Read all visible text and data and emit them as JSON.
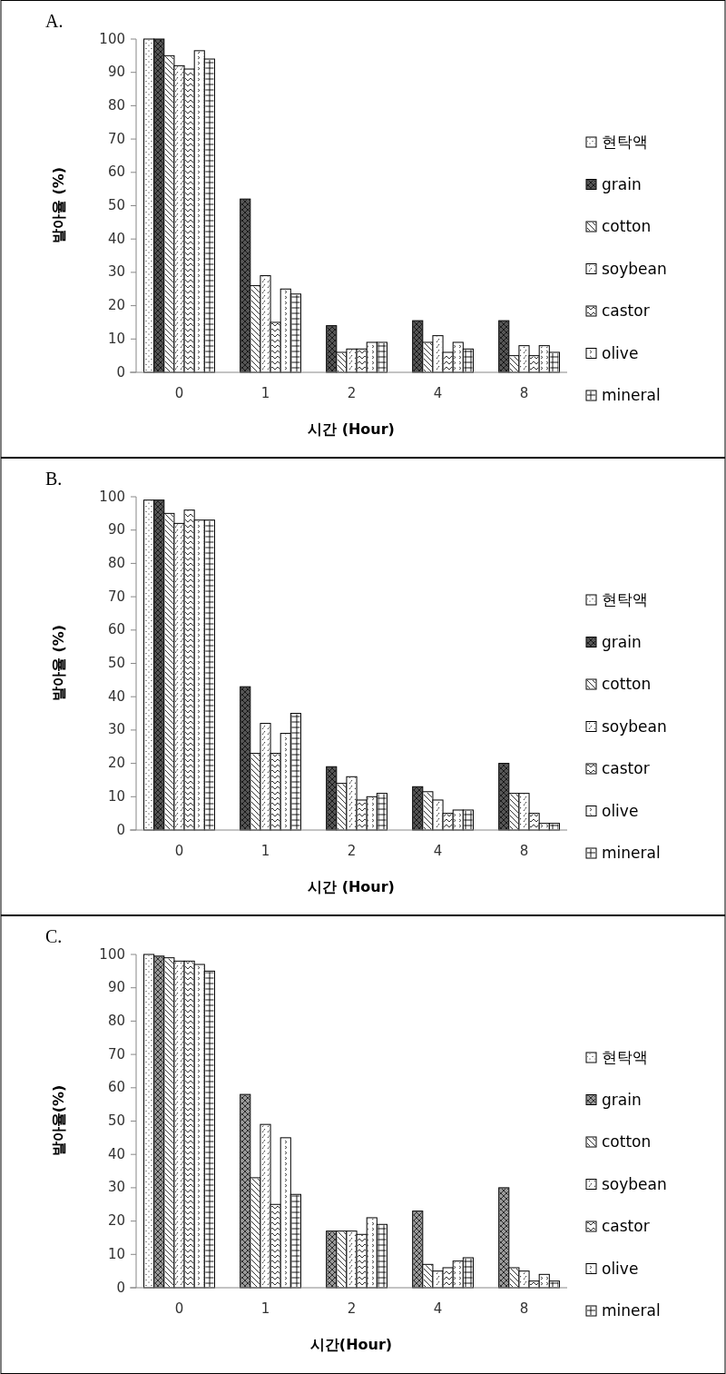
{
  "chart_data": [
    {
      "type": "bar",
      "title": "A.",
      "xlabel": "시간 (Hour)",
      "ylabel": "발아율 (%)",
      "categories": [
        "0",
        "1",
        "2",
        "4",
        "8"
      ],
      "ylim": [
        0,
        100
      ],
      "yticks": [
        0,
        10,
        20,
        30,
        40,
        50,
        60,
        70,
        80,
        90,
        100
      ],
      "grid": false,
      "legend": "right",
      "series": [
        {
          "name": "현탁액",
          "color": "#ffffff",
          "values": [
            100,
            null,
            null,
            null,
            null
          ]
        },
        {
          "name": "grain",
          "color": "#555555",
          "values": [
            100,
            52,
            14,
            15.5,
            15.5
          ]
        },
        {
          "name": "cotton",
          "color": "#ffffff",
          "values": [
            95,
            26,
            6,
            9,
            5
          ]
        },
        {
          "name": "soybean",
          "color": "#ffffff",
          "values": [
            92,
            29,
            7,
            11,
            8
          ]
        },
        {
          "name": "castor",
          "color": "#ffffff",
          "values": [
            91,
            15,
            7,
            6,
            5
          ]
        },
        {
          "name": "olive",
          "color": "#ffffff",
          "values": [
            96.5,
            25,
            9,
            9,
            8
          ]
        },
        {
          "name": "mineral",
          "color": "#ffffff",
          "values": [
            94,
            23.5,
            9,
            7,
            6
          ]
        }
      ]
    },
    {
      "type": "bar",
      "title": "B.",
      "xlabel": "시간 (Hour)",
      "ylabel": "발아율 (%)",
      "categories": [
        "0",
        "1",
        "2",
        "4",
        "8"
      ],
      "ylim": [
        0,
        100
      ],
      "yticks": [
        0,
        10,
        20,
        30,
        40,
        50,
        60,
        70,
        80,
        90,
        100
      ],
      "grid": false,
      "legend": "right",
      "series": [
        {
          "name": "현탁액",
          "color": "#ffffff",
          "values": [
            99,
            null,
            null,
            null,
            null
          ]
        },
        {
          "name": "grain",
          "color": "#555555",
          "values": [
            99,
            43,
            19,
            13,
            20
          ]
        },
        {
          "name": "cotton",
          "color": "#ffffff",
          "values": [
            95,
            23,
            14,
            11.5,
            11
          ]
        },
        {
          "name": "soybean",
          "color": "#ffffff",
          "values": [
            92,
            32,
            16,
            9,
            11
          ]
        },
        {
          "name": "castor",
          "color": "#ffffff",
          "values": [
            96,
            23,
            9,
            5,
            5
          ]
        },
        {
          "name": "olive",
          "color": "#ffffff",
          "values": [
            93,
            29,
            10,
            6,
            2
          ]
        },
        {
          "name": "mineral",
          "color": "#ffffff",
          "values": [
            93,
            35,
            11,
            6,
            2
          ]
        }
      ]
    },
    {
      "type": "bar",
      "title": "C.",
      "xlabel": "시간(Hour)",
      "ylabel": "발아율(%)",
      "categories": [
        "0",
        "1",
        "2",
        "4",
        "8"
      ],
      "ylim": [
        0,
        100
      ],
      "yticks": [
        0,
        10,
        20,
        30,
        40,
        50,
        60,
        70,
        80,
        90,
        100
      ],
      "grid": false,
      "legend": "right",
      "series": [
        {
          "name": "현탁액",
          "color": "#ffffff",
          "values": [
            100,
            null,
            null,
            null,
            null
          ]
        },
        {
          "name": "grain",
          "color": "#999999",
          "values": [
            99.5,
            58,
            17,
            23,
            30
          ]
        },
        {
          "name": "cotton",
          "color": "#ffffff",
          "values": [
            99,
            33,
            17,
            7,
            6
          ]
        },
        {
          "name": "soybean",
          "color": "#ffffff",
          "values": [
            98,
            49,
            17,
            5,
            5
          ]
        },
        {
          "name": "castor",
          "color": "#ffffff",
          "values": [
            98,
            25,
            16,
            6,
            2
          ]
        },
        {
          "name": "olive",
          "color": "#ffffff",
          "values": [
            97,
            45,
            21,
            8,
            4
          ]
        },
        {
          "name": "mineral",
          "color": "#ffffff",
          "values": [
            95,
            28,
            19,
            9,
            2
          ]
        }
      ]
    }
  ]
}
